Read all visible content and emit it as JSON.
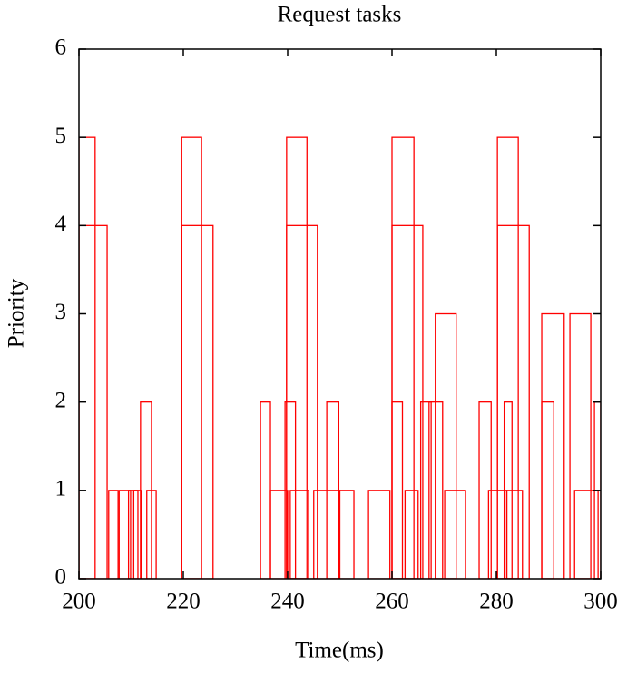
{
  "chart_data": {
    "type": "task-intervals",
    "title": "Request tasks",
    "x_label": "Time(ms)",
    "y_label": "Priority",
    "color": "#ff0000",
    "xlim": [
      200,
      300
    ],
    "xticks": [
      200,
      220,
      240,
      260,
      280,
      300
    ],
    "ylim": [
      0,
      6
    ],
    "yticks": [
      0,
      1,
      2,
      3,
      4,
      5,
      6
    ],
    "tasks": [
      {
        "start": 200,
        "end": 203.1,
        "priority": 5
      },
      {
        "start": 200,
        "end": 205.4,
        "priority": 4
      },
      {
        "start": 205.7,
        "end": 207.5,
        "priority": 1
      },
      {
        "start": 207.7,
        "end": 209.9,
        "priority": 1
      },
      {
        "start": 209.5,
        "end": 211.3,
        "priority": 1
      },
      {
        "start": 210.5,
        "end": 212,
        "priority": 1
      },
      {
        "start": 211.8,
        "end": 213.9,
        "priority": 2
      },
      {
        "start": 213,
        "end": 214.8,
        "priority": 1
      },
      {
        "start": 219.7,
        "end": 223.5,
        "priority": 5
      },
      {
        "start": 219.7,
        "end": 225.7,
        "priority": 4
      },
      {
        "start": 234.8,
        "end": 236.7,
        "priority": 2
      },
      {
        "start": 236.7,
        "end": 240,
        "priority": 1
      },
      {
        "start": 239.8,
        "end": 243.7,
        "priority": 5
      },
      {
        "start": 239.8,
        "end": 245.7,
        "priority": 4
      },
      {
        "start": 239.5,
        "end": 241.5,
        "priority": 2
      },
      {
        "start": 240.5,
        "end": 244,
        "priority": 1
      },
      {
        "start": 247.5,
        "end": 249.8,
        "priority": 2
      },
      {
        "start": 245,
        "end": 250,
        "priority": 1
      },
      {
        "start": 249.9,
        "end": 252.7,
        "priority": 1
      },
      {
        "start": 255.5,
        "end": 259.6,
        "priority": 1
      },
      {
        "start": 260,
        "end": 264.2,
        "priority": 5
      },
      {
        "start": 260,
        "end": 265.9,
        "priority": 4
      },
      {
        "start": 260,
        "end": 262,
        "priority": 2
      },
      {
        "start": 262.5,
        "end": 265,
        "priority": 1
      },
      {
        "start": 265.5,
        "end": 267.5,
        "priority": 2
      },
      {
        "start": 267.1,
        "end": 269.7,
        "priority": 2
      },
      {
        "start": 268.3,
        "end": 272.3,
        "priority": 3
      },
      {
        "start": 270.1,
        "end": 274.1,
        "priority": 1
      },
      {
        "start": 276.7,
        "end": 279,
        "priority": 2
      },
      {
        "start": 280.2,
        "end": 284.2,
        "priority": 5
      },
      {
        "start": 280.2,
        "end": 286.3,
        "priority": 4
      },
      {
        "start": 278.5,
        "end": 282,
        "priority": 1
      },
      {
        "start": 282,
        "end": 285,
        "priority": 1
      },
      {
        "start": 281.5,
        "end": 283,
        "priority": 2
      },
      {
        "start": 288.7,
        "end": 293,
        "priority": 3
      },
      {
        "start": 288.7,
        "end": 291,
        "priority": 2
      },
      {
        "start": 294.1,
        "end": 298.1,
        "priority": 3
      },
      {
        "start": 295,
        "end": 299.5,
        "priority": 1
      },
      {
        "start": 298.8,
        "end": 300,
        "priority": 2
      }
    ]
  }
}
